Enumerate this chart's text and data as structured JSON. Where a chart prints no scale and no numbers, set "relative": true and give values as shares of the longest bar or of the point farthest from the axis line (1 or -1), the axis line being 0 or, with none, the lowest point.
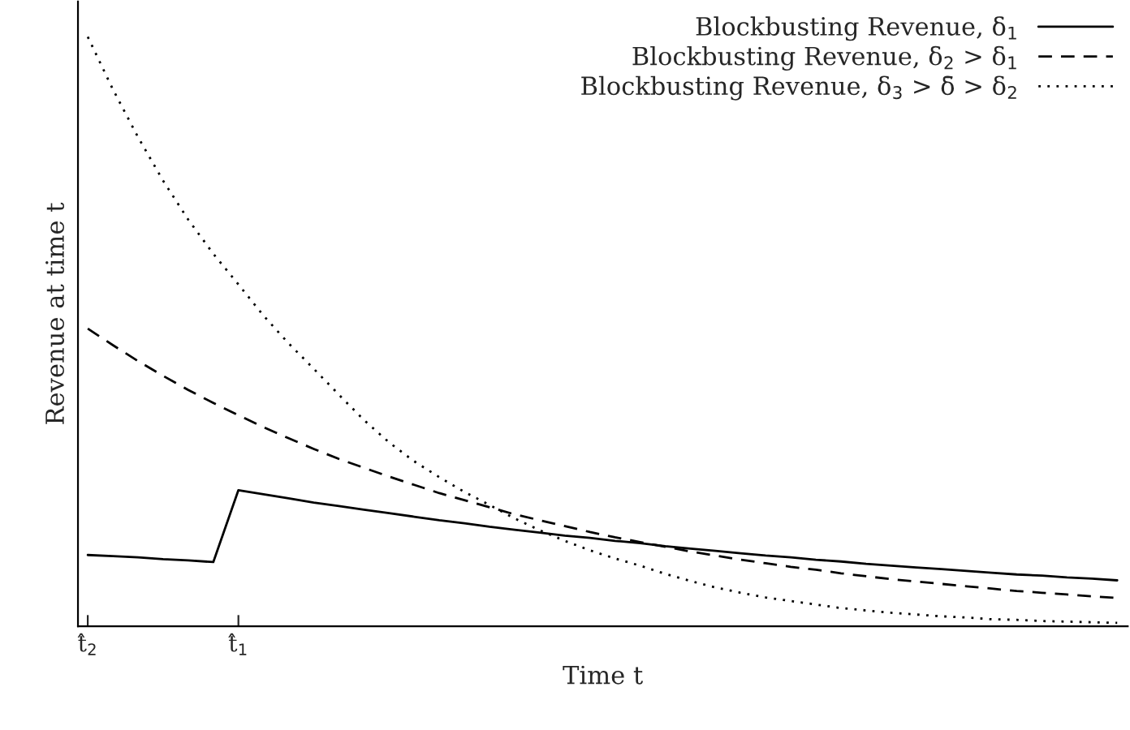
{
  "chart_data": {
    "type": "line",
    "relative": true,
    "xlabel": "Time t",
    "ylabel": "Revenue at time t",
    "categories": [
      "t̂$_{2}$",
      null,
      null,
      null,
      null,
      null,
      "t̂$_{1}$",
      null,
      null,
      null,
      null,
      null,
      null,
      null,
      null,
      null,
      null,
      null,
      null,
      null,
      null,
      null,
      null,
      null,
      null,
      null,
      null,
      null,
      null,
      null,
      null,
      null,
      null,
      null,
      null,
      null,
      null,
      null,
      null,
      null,
      null,
      null
    ],
    "legend": "top right",
    "grid": false,
    "marker": "none",
    "series": [
      {
        "name": "Blockbusting Revenue, δ$_{1}$",
        "color": "#000000",
        "line_style": "solid",
        "values": [
          0.121,
          0.119,
          0.117,
          0.114,
          0.112,
          0.109,
          0.231,
          0.224,
          0.217,
          0.21,
          0.204,
          0.198,
          0.192,
          0.186,
          0.18,
          0.175,
          0.169,
          0.164,
          0.159,
          0.154,
          0.15,
          0.145,
          0.141,
          0.136,
          0.132,
          0.128,
          0.124,
          0.12,
          0.117,
          0.113,
          0.11,
          0.106,
          0.103,
          0.1,
          0.097,
          0.094,
          0.091,
          0.088,
          0.086,
          0.083,
          0.081,
          0.078
        ]
      },
      {
        "name": "Blockbusting Revenue, δ$_{2}$ > δ$_{1}$",
        "color": "#000000",
        "line_style": "dashed",
        "values": [
          0.505,
          0.477,
          0.45,
          0.425,
          0.401,
          0.379,
          0.358,
          0.338,
          0.319,
          0.301,
          0.284,
          0.269,
          0.254,
          0.24,
          0.226,
          0.214,
          0.202,
          0.19,
          0.18,
          0.17,
          0.16,
          0.151,
          0.143,
          0.135,
          0.127,
          0.12,
          0.113,
          0.107,
          0.101,
          0.096,
          0.09,
          0.085,
          0.08,
          0.076,
          0.072,
          0.068,
          0.064,
          0.06,
          0.057,
          0.054,
          0.051,
          0.048
        ]
      },
      {
        "name": "Blockbusting Revenue, δ$_{3}$ > δ̄ > δ$_{2}$",
        "color": "#000000",
        "line_style": "dotted",
        "values": [
          1,
          0.911,
          0.83,
          0.756,
          0.69,
          0.632,
          0.58,
          0.527,
          0.48,
          0.437,
          0.393,
          0.35,
          0.312,
          0.28,
          0.253,
          0.228,
          0.206,
          0.183,
          0.163,
          0.145,
          0.129,
          0.115,
          0.103,
          0.089,
          0.077,
          0.066,
          0.057,
          0.049,
          0.043,
          0.037,
          0.031,
          0.027,
          0.023,
          0.02,
          0.017,
          0.015,
          0.012,
          0.011,
          0.009,
          0.008,
          0.007,
          0.006
        ]
      }
    ]
  }
}
